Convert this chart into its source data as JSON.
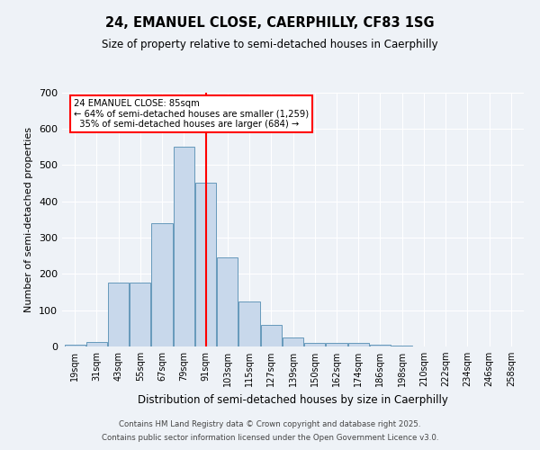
{
  "title1": "24, EMANUEL CLOSE, CAERPHILLY, CF83 1SG",
  "title2": "Size of property relative to semi-detached houses in Caerphilly",
  "xlabel": "Distribution of semi-detached houses by size in Caerphilly",
  "ylabel": "Number of semi-detached properties",
  "bin_labels": [
    "19sqm",
    "31sqm",
    "43sqm",
    "55sqm",
    "67sqm",
    "79sqm",
    "91sqm",
    "103sqm",
    "115sqm",
    "127sqm",
    "139sqm",
    "150sqm",
    "162sqm",
    "174sqm",
    "186sqm",
    "198sqm",
    "210sqm",
    "222sqm",
    "234sqm",
    "246sqm",
    "258sqm"
  ],
  "bar_values": [
    5,
    12,
    175,
    175,
    340,
    550,
    450,
    245,
    125,
    60,
    25,
    10,
    10,
    10,
    5,
    2,
    1,
    0,
    0,
    0,
    0
  ],
  "bar_color": "#c8d8eb",
  "bar_edge_color": "#6699bb",
  "vline_x": 91,
  "annotation_text": "24 EMANUEL CLOSE: 85sqm\n← 64% of semi-detached houses are smaller (1,259)\n  35% of semi-detached houses are larger (684) →",
  "footer1": "Contains HM Land Registry data © Crown copyright and database right 2025.",
  "footer2": "Contains public sector information licensed under the Open Government Licence v3.0.",
  "ylim": [
    0,
    700
  ],
  "background_color": "#eef2f7",
  "plot_bg_color": "#eef2f7",
  "grid_color": "#ffffff",
  "bin_width": 12
}
